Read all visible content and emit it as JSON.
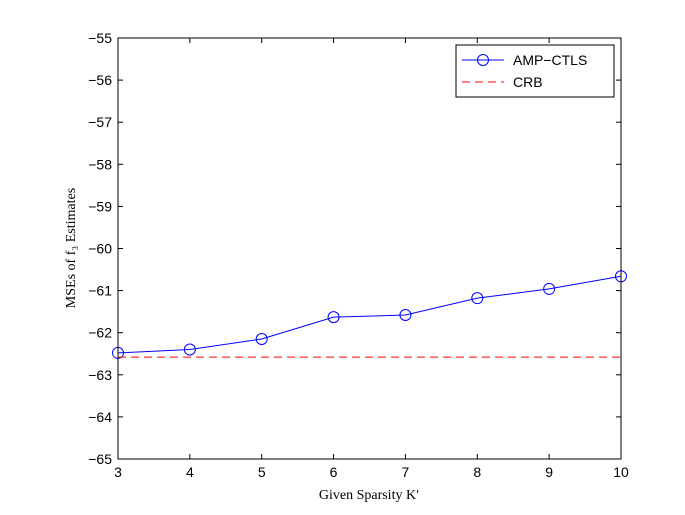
{
  "chart_data": {
    "type": "line",
    "xlabel": "Given Sparsity K′",
    "ylabel": "MSEs of f₃ Estimates",
    "xlim": [
      3,
      10
    ],
    "ylim": [
      -65,
      -55
    ],
    "xticks": [
      3,
      4,
      5,
      6,
      7,
      8,
      9,
      10
    ],
    "yticks": [
      -55,
      -56,
      -57,
      -58,
      -59,
      -60,
      -61,
      -62,
      -63,
      -64,
      -65
    ],
    "grid": false,
    "legend_position": "top-right",
    "series": [
      {
        "name": "AMP−CTLS",
        "color": "#0000ff",
        "line_style": "solid",
        "marker": "circle",
        "x": [
          3,
          4,
          5,
          6,
          7,
          8,
          9,
          10
        ],
        "y": [
          -62.48,
          -62.4,
          -62.15,
          -61.63,
          -61.58,
          -61.18,
          -60.96,
          -60.66
        ]
      },
      {
        "name": "CRB",
        "color": "#ff0000",
        "line_style": "dashed",
        "marker": "none",
        "x": [
          3,
          10
        ],
        "y": [
          -62.58,
          -62.58
        ]
      }
    ]
  }
}
